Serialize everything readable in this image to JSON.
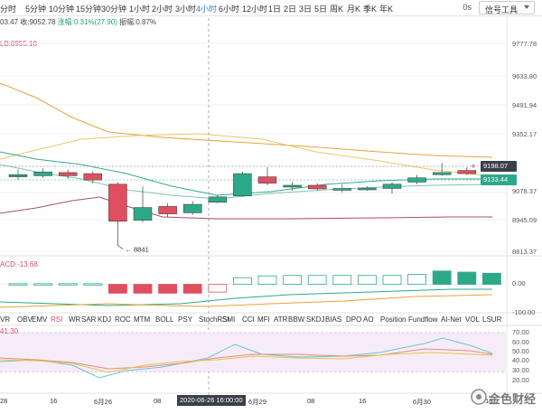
{
  "toolbar": {
    "timeframes": [
      "分时",
      "5分钟",
      "10分钟",
      "15分钟",
      "30分钟",
      "1小时",
      "2小时",
      "3小时",
      "4小时",
      "6小时",
      "12小时",
      "1日",
      "2日",
      "3日",
      "5日",
      "周K",
      "月K",
      "季K",
      "年K"
    ],
    "active_timeframe": "4小时",
    "os_label": "0s",
    "dropdown_label": "信号工具"
  },
  "info": {
    "prefix": "03.47",
    "close_label": "收:9052.78",
    "change_label": "涨幅:0.31%(27.90)",
    "amplitude_label": "振幅:0.87%"
  },
  "ma_label": "LB:8955.18",
  "macd_label": "ACD:-13.68",
  "rsi_value_label": "41.30",
  "price_axis": [
    "9777.78",
    "9633.80",
    "9491.94",
    "9352.17",
    "9198.07",
    "9133.44",
    "9078.37",
    "8945.09",
    "8813.37"
  ],
  "current_badges": {
    "upper": "9198.07",
    "lower": "9133.44"
  },
  "low_marker": "8841",
  "macd_axis": [
    "0.00",
    "-100.00"
  ],
  "rsi_axis": [
    "70.00",
    "60.00",
    "50.00",
    "40.00",
    "30.00",
    "20.00"
  ],
  "indicator_tabs": [
    "VR",
    "OBV",
    "EMV",
    "RSI",
    "WR",
    "SAR",
    "KDJ",
    "ROC",
    "MTM",
    "BOLL",
    "PSY",
    "StochRSI",
    "SMI",
    "CCI",
    "MFI",
    "ATR",
    "BBW",
    "SKDJ",
    "BIAS",
    "DPO",
    "AO",
    "Position",
    "Fundflow",
    "AI-Net",
    "VOL",
    "LSUR"
  ],
  "active_indicator": "RSI",
  "bottom_labels": [
    "RSI",
    "WR",
    "SAR",
    "KDJ",
    "ROC",
    "MTM",
    "BOLL",
    "PSY",
    "StochRSI",
    "SMI",
    "CCI",
    "MFI",
    "ATR",
    "BBW",
    "SKDJ",
    "BIAS",
    "DPO",
    "AO",
    "Position",
    "Fundflow"
  ],
  "time_axis": [
    "28",
    "16",
    "6月26",
    "08",
    "6月29",
    "08",
    "16",
    "6月30",
    "16"
  ],
  "highlight_time": "2020-06-26 16:00:00",
  "watermark": "金色财经",
  "colors": {
    "up": "#2da98a",
    "down": "#e04f5f",
    "accent_blue": "#3b78d8",
    "ma_orange": "#e8a33b",
    "ma_yellow": "#e6c96a",
    "ma_teal": "#3aa88f",
    "ma_purple": "#b04a72"
  },
  "chart_data": {
    "type": "candlestick",
    "y_range": [
      8813.37,
      9777.78
    ],
    "candles": [
      {
        "o": 9165,
        "c": 9175,
        "h": 9200,
        "l": 9150
      },
      {
        "o": 9170,
        "c": 9188,
        "h": 9205,
        "l": 9160
      },
      {
        "o": 9185,
        "c": 9170,
        "h": 9200,
        "l": 9155
      },
      {
        "o": 9180,
        "c": 9150,
        "h": 9190,
        "l": 9135
      },
      {
        "o": 9130,
        "c": 8955,
        "h": 9140,
        "l": 8841
      },
      {
        "o": 8960,
        "c": 9020,
        "h": 9120,
        "l": 8950
      },
      {
        "o": 9025,
        "c": 8990,
        "h": 9040,
        "l": 8975
      },
      {
        "o": 8995,
        "c": 9035,
        "h": 9050,
        "l": 8985
      },
      {
        "o": 9045,
        "c": 9070,
        "h": 9080,
        "l": 9040
      },
      {
        "o": 9075,
        "c": 9180,
        "h": 9190,
        "l": 9070
      },
      {
        "o": 9165,
        "c": 9135,
        "h": 9210,
        "l": 9125
      },
      {
        "o": 9120,
        "c": 9125,
        "h": 9140,
        "l": 9100
      },
      {
        "o": 9125,
        "c": 9108,
        "h": 9135,
        "l": 9100
      },
      {
        "o": 9105,
        "c": 9110,
        "h": 9130,
        "l": 9090
      },
      {
        "o": 9108,
        "c": 9112,
        "h": 9120,
        "l": 9100
      },
      {
        "o": 9110,
        "c": 9130,
        "h": 9140,
        "l": 9085
      },
      {
        "o": 9140,
        "c": 9160,
        "h": 9175,
        "l": 9130
      },
      {
        "o": 9175,
        "c": 9185,
        "h": 9230,
        "l": 9170
      },
      {
        "o": 9195,
        "c": 9180,
        "h": 9210,
        "l": 9175
      },
      {
        "o": 9160,
        "c": 9140,
        "h": 9165,
        "l": 9130
      }
    ],
    "macd_bars": [
      3,
      3,
      3,
      3,
      -40,
      -40,
      -40,
      -40,
      -35,
      30,
      38,
      40,
      40,
      40,
      40,
      40,
      45,
      60,
      55,
      50
    ],
    "macd_range": [
      -120,
      100
    ],
    "rsi_range": [
      20,
      70
    ]
  }
}
